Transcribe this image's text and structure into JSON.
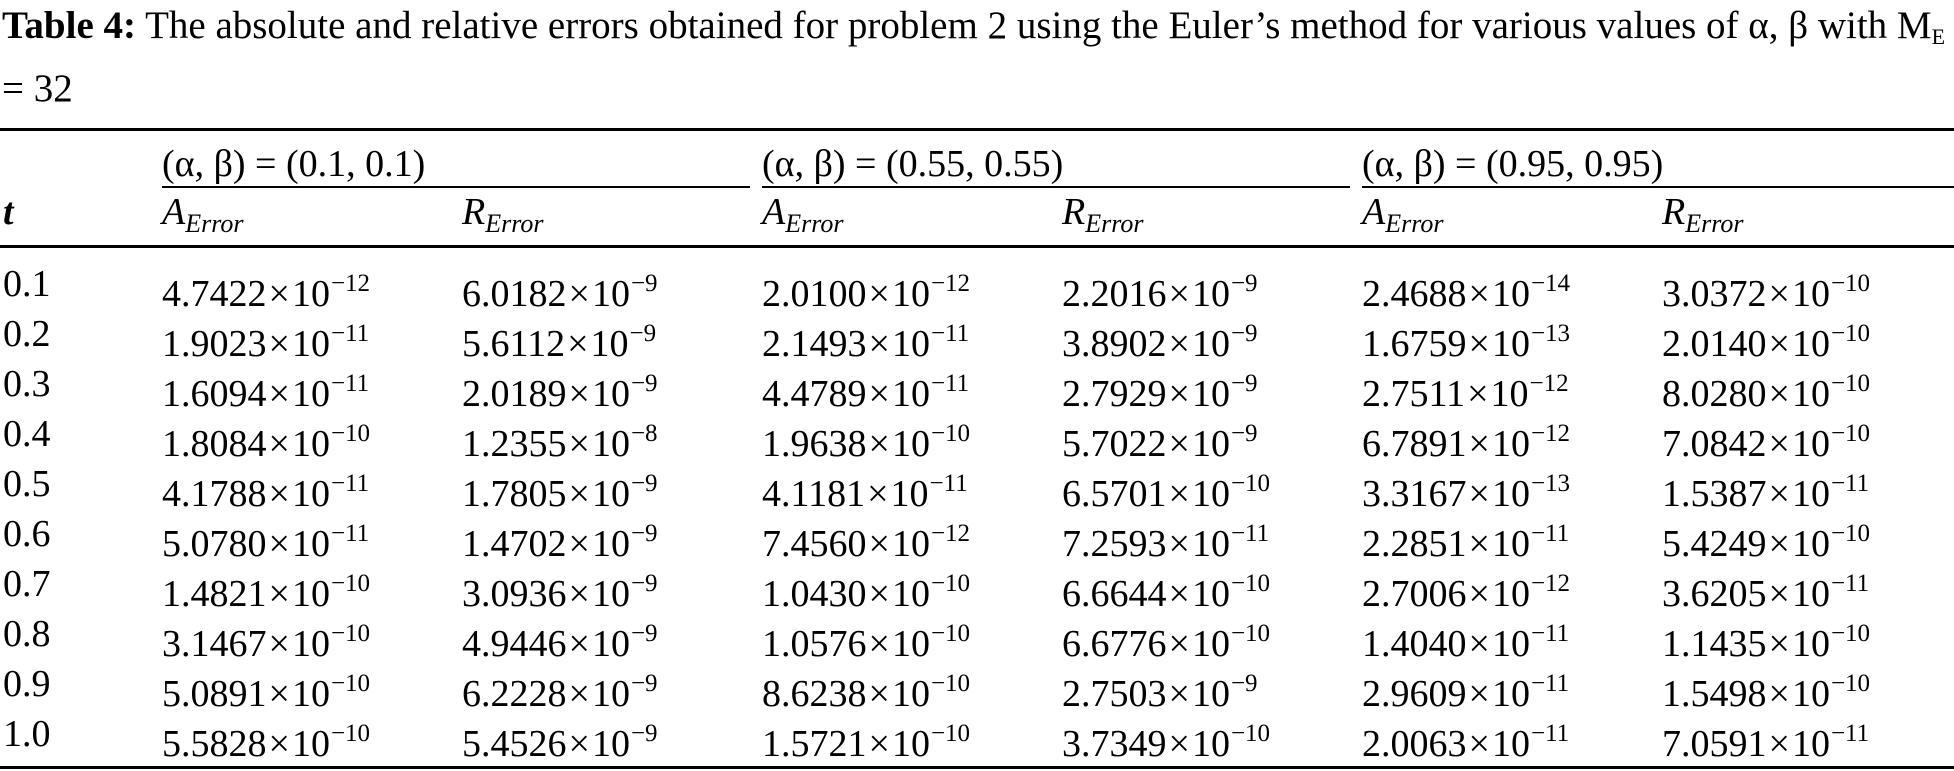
{
  "caption": {
    "label": "Table 4:",
    "text": "The absolute and relative errors obtained for problem 2 using the Euler’s method for various values of α,  β with M",
    "subscript": "E",
    "suffix": " = 32"
  },
  "table": {
    "row_header": "t",
    "groups": [
      {
        "label": "(α,  β) = (0.1,  0.1)"
      },
      {
        "label": "(α,  β) = (0.55,  0.55)"
      },
      {
        "label": "(α,  β) = (0.95,  0.95)"
      }
    ],
    "column_headers": [
      {
        "main": "A",
        "sub": "Error"
      },
      {
        "main": "R",
        "sub": "Error"
      },
      {
        "main": "A",
        "sub": "Error"
      },
      {
        "main": "R",
        "sub": "Error"
      },
      {
        "main": "A",
        "sub": "Error"
      },
      {
        "main": "R",
        "sub": "Error"
      }
    ],
    "rows": [
      {
        "t": "0.1",
        "cells": [
          {
            "m": "4.7422",
            "e": "−12"
          },
          {
            "m": "6.0182",
            "e": "−9"
          },
          {
            "m": "2.0100",
            "e": "−12"
          },
          {
            "m": "2.2016",
            "e": "−9"
          },
          {
            "m": "2.4688",
            "e": "−14"
          },
          {
            "m": "3.0372",
            "e": "−10"
          }
        ]
      },
      {
        "t": "0.2",
        "cells": [
          {
            "m": "1.9023",
            "e": "−11"
          },
          {
            "m": "5.6112",
            "e": "−9"
          },
          {
            "m": "2.1493",
            "e": "−11"
          },
          {
            "m": "3.8902",
            "e": "−9"
          },
          {
            "m": "1.6759",
            "e": "−13"
          },
          {
            "m": "2.0140",
            "e": "−10"
          }
        ]
      },
      {
        "t": "0.3",
        "cells": [
          {
            "m": "1.6094",
            "e": "−11"
          },
          {
            "m": "2.0189",
            "e": "−9"
          },
          {
            "m": "4.4789",
            "e": "−11"
          },
          {
            "m": "2.7929",
            "e": "−9"
          },
          {
            "m": "2.7511",
            "e": "−12"
          },
          {
            "m": "8.0280",
            "e": "−10"
          }
        ]
      },
      {
        "t": "0.4",
        "cells": [
          {
            "m": "1.8084",
            "e": "−10"
          },
          {
            "m": "1.2355",
            "e": "−8"
          },
          {
            "m": "1.9638",
            "e": "−10"
          },
          {
            "m": "5.7022",
            "e": "−9"
          },
          {
            "m": "6.7891",
            "e": "−12"
          },
          {
            "m": "7.0842",
            "e": "−10"
          }
        ]
      },
      {
        "t": "0.5",
        "cells": [
          {
            "m": "4.1788",
            "e": "−11"
          },
          {
            "m": "1.7805",
            "e": "−9"
          },
          {
            "m": "4.1181",
            "e": "−11"
          },
          {
            "m": "6.5701",
            "e": "−10"
          },
          {
            "m": "3.3167",
            "e": "−13"
          },
          {
            "m": "1.5387",
            "e": "−11"
          }
        ]
      },
      {
        "t": "0.6",
        "cells": [
          {
            "m": "5.0780",
            "e": "−11"
          },
          {
            "m": "1.4702",
            "e": "−9"
          },
          {
            "m": "7.4560",
            "e": "−12"
          },
          {
            "m": "7.2593",
            "e": "−11"
          },
          {
            "m": "2.2851",
            "e": "−11"
          },
          {
            "m": "5.4249",
            "e": "−10"
          }
        ]
      },
      {
        "t": "0.7",
        "cells": [
          {
            "m": "1.4821",
            "e": "−10"
          },
          {
            "m": "3.0936",
            "e": "−9"
          },
          {
            "m": "1.0430",
            "e": "−10"
          },
          {
            "m": "6.6644",
            "e": "−10"
          },
          {
            "m": "2.7006",
            "e": "−12"
          },
          {
            "m": "3.6205",
            "e": "−11"
          }
        ]
      },
      {
        "t": "0.8",
        "cells": [
          {
            "m": "3.1467",
            "e": "−10"
          },
          {
            "m": "4.9446",
            "e": "−9"
          },
          {
            "m": "1.0576",
            "e": "−10"
          },
          {
            "m": "6.6776",
            "e": "−10"
          },
          {
            "m": "1.4040",
            "e": "−11"
          },
          {
            "m": "1.1435",
            "e": "−10"
          }
        ]
      },
      {
        "t": "0.9",
        "cells": [
          {
            "m": "5.0891",
            "e": "−10"
          },
          {
            "m": "6.2228",
            "e": "−9"
          },
          {
            "m": "8.6238",
            "e": "−10"
          },
          {
            "m": "2.7503",
            "e": "−9"
          },
          {
            "m": "2.9609",
            "e": "−11"
          },
          {
            "m": "1.5498",
            "e": "−10"
          }
        ]
      },
      {
        "t": "1.0",
        "cells": [
          {
            "m": "5.5828",
            "e": "−10"
          },
          {
            "m": "5.4526",
            "e": "−9"
          },
          {
            "m": "1.5721",
            "e": "−10"
          },
          {
            "m": "3.7349",
            "e": "−10"
          },
          {
            "m": "2.0063",
            "e": "−11"
          },
          {
            "m": "7.0591",
            "e": "−11"
          }
        ]
      }
    ],
    "times_symbol": "×",
    "base": "10"
  }
}
